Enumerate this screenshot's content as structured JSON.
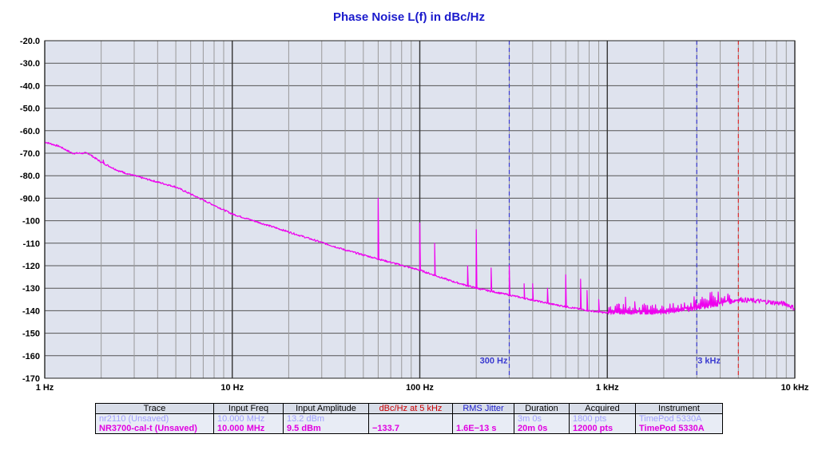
{
  "chart_data": {
    "type": "line",
    "title": "Phase Noise L(f) in dBc/Hz",
    "x_scale": "log",
    "xlim": [
      1,
      10000
    ],
    "ylim": [
      -170,
      -20
    ],
    "yticks": [
      "-20.0",
      "-30.0",
      "-40.0",
      "-50.0",
      "-60.0",
      "-70.0",
      "-80.0",
      "-90.0",
      "-100",
      "-110",
      "-120",
      "-130",
      "-140",
      "-150",
      "-160",
      "-170"
    ],
    "xticks": [
      {
        "value": 1,
        "label": "1 Hz"
      },
      {
        "value": 10,
        "label": "10 Hz"
      },
      {
        "value": 100,
        "label": "100 Hz"
      },
      {
        "value": 1000,
        "label": "1 kHz"
      },
      {
        "value": 10000,
        "label": "10 kHz"
      }
    ],
    "grid": true,
    "markers": [
      {
        "x": 300,
        "label": "300 Hz",
        "color": "#3a3ad0"
      },
      {
        "x": 3000,
        "label": "3 kHz",
        "color": "#3a3ad0"
      },
      {
        "x": 5000,
        "label": "",
        "color": "#e03030"
      }
    ],
    "series": [
      {
        "name": "NR3700-cal-t (Unsaved)",
        "color": "#ee00ee",
        "baseline": [
          [
            1,
            -65
          ],
          [
            1.2,
            -67
          ],
          [
            1.4,
            -70
          ],
          [
            1.7,
            -70
          ],
          [
            2.0,
            -74
          ],
          [
            2.5,
            -78
          ],
          [
            3,
            -80
          ],
          [
            5,
            -85
          ],
          [
            10,
            -97
          ],
          [
            20,
            -105
          ],
          [
            40,
            -113
          ],
          [
            60,
            -117
          ],
          [
            100,
            -122
          ],
          [
            150,
            -127
          ],
          [
            200,
            -130
          ],
          [
            300,
            -133
          ],
          [
            500,
            -137
          ],
          [
            800,
            -140
          ],
          [
            1000,
            -141
          ],
          [
            2000,
            -141
          ],
          [
            3000,
            -139
          ],
          [
            4000,
            -137
          ],
          [
            5000,
            -135
          ],
          [
            7000,
            -136
          ],
          [
            9000,
            -137
          ],
          [
            10000,
            -139
          ]
        ],
        "spurs": [
          [
            2.05,
            -73
          ],
          [
            2.6,
            -78
          ],
          [
            60,
            -90
          ],
          [
            100,
            -101
          ],
          [
            120,
            -110
          ],
          [
            180,
            -120
          ],
          [
            200,
            -104
          ],
          [
            240,
            -121
          ],
          [
            300,
            -120
          ],
          [
            360,
            -128
          ],
          [
            400,
            -128
          ],
          [
            480,
            -130
          ],
          [
            600,
            -124
          ],
          [
            720,
            -126
          ],
          [
            780,
            -131
          ],
          [
            900,
            -135
          ],
          [
            1150,
            -137
          ],
          [
            1250,
            -134
          ],
          [
            1400,
            -136
          ]
        ]
      }
    ]
  },
  "legend": {
    "headers": [
      "Trace",
      "Input Freq",
      "Input Amplitude",
      "dBc/Hz at 5 kHz",
      "RMS Jitter",
      "Duration",
      "Acquired",
      "Instrument"
    ],
    "header_colors": [
      "#000000",
      "#000000",
      "#000000",
      "#cc0000",
      "#1a1acc",
      "#000000",
      "#000000",
      "#000000"
    ],
    "rows": [
      {
        "trace": "nr2110 (Unsaved)",
        "freq": "10.000 MHz",
        "amp": "13.2 dBm",
        "dbc": "",
        "jitter": "",
        "duration": "3m 0s",
        "acquired": "1800 pts",
        "instrument": "TimePod 5330A"
      },
      {
        "trace": "NR3700-cal-t (Unsaved)",
        "freq": "10.000 MHz",
        "amp": "9.5 dBm",
        "dbc": "−133.7",
        "jitter": "1.6E−13 s",
        "duration": "20m 0s",
        "acquired": "12000 pts",
        "instrument": "TimePod 5330A"
      }
    ]
  },
  "colors": {
    "plot_bg": "#dfe3ee",
    "grid_major": "#555555",
    "grid_minor": "#9a9a9a"
  }
}
